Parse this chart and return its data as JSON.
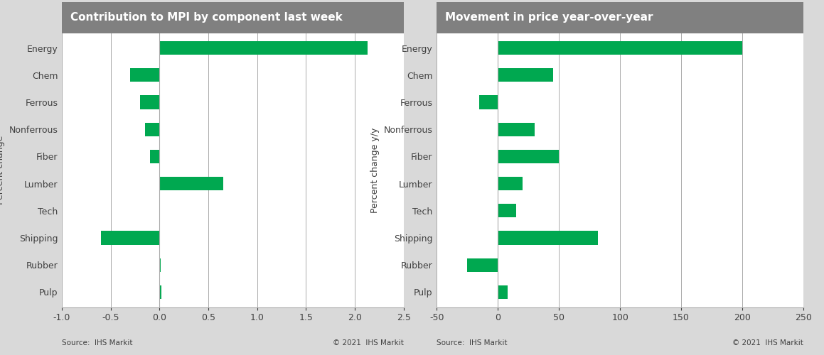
{
  "categories": [
    "Energy",
    "Chem",
    "Ferrous",
    "Nonferrous",
    "Fiber",
    "Lumber",
    "Tech",
    "Shipping",
    "Rubber",
    "Pulp"
  ],
  "left_values": [
    2.13,
    -0.3,
    -0.2,
    -0.15,
    -0.1,
    0.65,
    0.0,
    -0.6,
    0.01,
    0.02
  ],
  "right_values": [
    200,
    45,
    -15,
    30,
    50,
    20,
    15,
    82,
    -25,
    8
  ],
  "left_title": "Contribution to MPI by component last week",
  "right_title": "Movement in price year-over-year",
  "left_ylabel": "Percent change",
  "right_ylabel": "Percent change y/y",
  "left_xlim": [
    -1.0,
    2.5
  ],
  "right_xlim": [
    -50,
    250
  ],
  "left_xticks": [
    -1.0,
    -0.5,
    0.0,
    0.5,
    1.0,
    1.5,
    2.0,
    2.5
  ],
  "right_xticks": [
    -50,
    0,
    50,
    100,
    150,
    200,
    250
  ],
  "bar_color": "#00A850",
  "bg_color": "#d9d9d9",
  "panel_bg_color": "#ffffff",
  "title_bg_color": "#808080",
  "title_text_color": "#ffffff",
  "label_color": "#404040",
  "grid_color": "#aaaaaa",
  "source_text": "Source:  IHS Markit",
  "copyright_text": "© 2021  IHS Markit",
  "title_fontsize": 11,
  "label_fontsize": 9,
  "tick_fontsize": 9,
  "source_fontsize": 7.5,
  "bar_height": 0.5
}
